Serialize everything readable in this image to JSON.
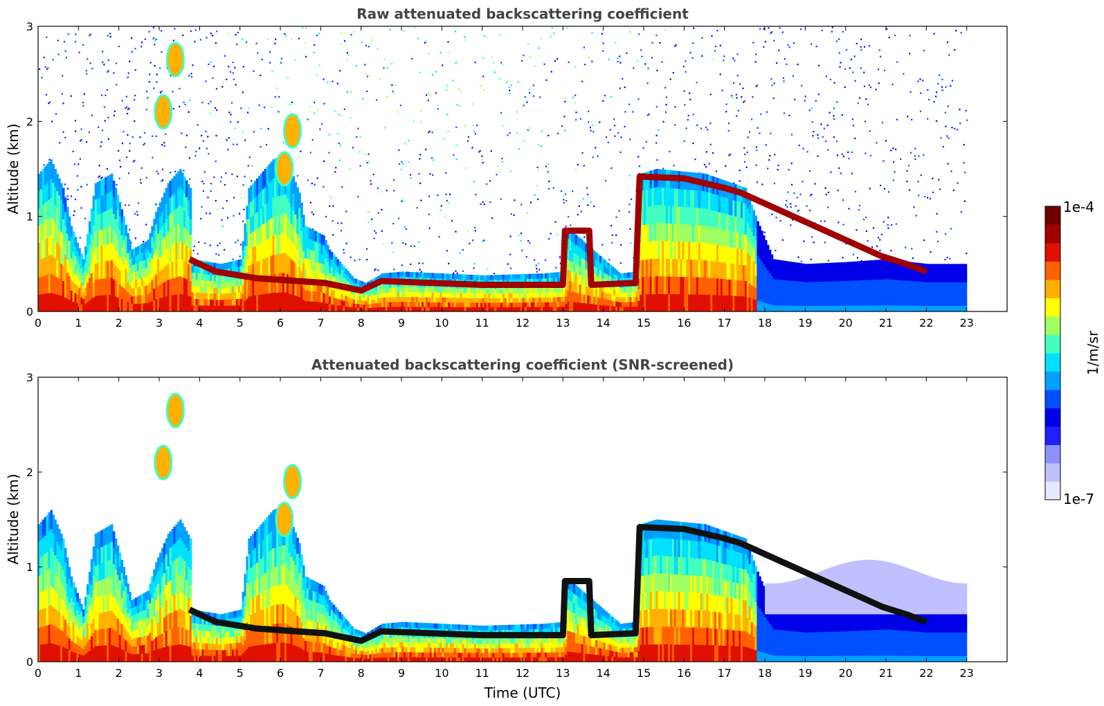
{
  "chart_data": [
    {
      "type": "heatmap",
      "title": "Raw attenuated backscattering coefficient",
      "xlabel": "",
      "ylabel": "Altitude (km)",
      "xlim": [
        0,
        24
      ],
      "ylim": [
        0,
        3
      ],
      "x_ticks": [
        0,
        1,
        2,
        3,
        4,
        5,
        6,
        7,
        8,
        9,
        10,
        11,
        12,
        13,
        14,
        15,
        16,
        17,
        18,
        19,
        20,
        21,
        22,
        23
      ],
      "y_ticks": [
        0,
        1,
        2,
        3
      ],
      "data_extent_x": [
        0,
        23
      ],
      "grid": false,
      "layers": {
        "surface_aerosol": [
          [
            0,
            1.45
          ],
          [
            0.3,
            1.6
          ],
          [
            0.6,
            1.3
          ],
          [
            0.8,
            0.9
          ],
          [
            1.1,
            0.55
          ],
          [
            1.4,
            1.35
          ],
          [
            1.8,
            1.45
          ],
          [
            2.1,
            1.0
          ],
          [
            2.3,
            0.65
          ],
          [
            2.7,
            0.75
          ],
          [
            2.9,
            1.05
          ],
          [
            3.2,
            1.35
          ],
          [
            3.5,
            1.5
          ],
          [
            3.75,
            1.3
          ],
          [
            3.8,
            0.55
          ],
          [
            4.5,
            0.5
          ],
          [
            5.0,
            0.55
          ],
          [
            5.2,
            1.3
          ],
          [
            5.8,
            1.6
          ],
          [
            6.1,
            1.65
          ],
          [
            6.45,
            1.25
          ],
          [
            6.6,
            0.9
          ],
          [
            7.05,
            0.8
          ],
          [
            7.2,
            0.65
          ],
          [
            7.8,
            0.35
          ],
          [
            8.1,
            0.3
          ],
          [
            8.5,
            0.4
          ],
          [
            9.0,
            0.42
          ],
          [
            11.0,
            0.38
          ],
          [
            12.5,
            0.4
          ],
          [
            13.0,
            0.42
          ],
          [
            13.1,
            0.88
          ],
          [
            14.4,
            0.4
          ],
          [
            14.8,
            0.42
          ],
          [
            14.9,
            1.45
          ],
          [
            15.3,
            1.5
          ],
          [
            16.5,
            1.45
          ],
          [
            17.5,
            1.3
          ],
          [
            17.8,
            0.95
          ],
          [
            18.2,
            0.55
          ],
          [
            19.0,
            0.5
          ],
          [
            20.0,
            0.52
          ],
          [
            21.0,
            0.55
          ],
          [
            22.0,
            0.5
          ],
          [
            23.0,
            0.5
          ]
        ],
        "cloud_layer": [
          [
            3.75,
            0.55
          ],
          [
            4.4,
            0.42
          ],
          [
            5.4,
            0.35
          ],
          [
            7.1,
            0.3
          ],
          [
            8.0,
            0.22
          ],
          [
            8.5,
            0.32
          ],
          [
            11.0,
            0.28
          ],
          [
            13.0,
            0.28
          ],
          [
            13.05,
            0.85
          ],
          [
            13.65,
            0.85
          ],
          [
            13.7,
            0.28
          ],
          [
            14.8,
            0.3
          ],
          [
            14.9,
            1.42
          ],
          [
            16.0,
            1.4
          ],
          [
            17.0,
            1.3
          ],
          [
            17.4,
            1.25
          ],
          [
            20.9,
            0.58
          ],
          [
            21.5,
            0.5
          ],
          [
            22.0,
            0.42
          ]
        ],
        "elevated_cloud": [
          [
            3.4,
            2.65
          ],
          [
            3.1,
            2.1
          ],
          [
            6.3,
            1.9
          ],
          [
            6.1,
            1.5
          ]
        ]
      }
    },
    {
      "type": "heatmap",
      "title": "Attenuated backscattering coefficient (SNR-screened)",
      "xlabel": "Time (UTC)",
      "ylabel": "Altitude (km)",
      "xlim": [
        0,
        24
      ],
      "ylim": [
        0,
        3
      ],
      "x_ticks": [
        0,
        1,
        2,
        3,
        4,
        5,
        6,
        7,
        8,
        9,
        10,
        11,
        12,
        13,
        14,
        15,
        16,
        17,
        18,
        19,
        20,
        21,
        22,
        23
      ],
      "y_ticks": [
        0,
        1,
        2,
        3
      ],
      "data_extent_x": [
        0,
        23
      ],
      "grid": false
    }
  ],
  "colorbar": {
    "label": "1/m/sr",
    "min_label": "1e-7",
    "max_label": "1e-4",
    "colormap": [
      "#e8e8ff",
      "#c0c0ff",
      "#9090ff",
      "#2020ff",
      "#0000e8",
      "#0050ff",
      "#00a0ff",
      "#00e0ff",
      "#40ffc0",
      "#a0ff60",
      "#ffff00",
      "#ffb000",
      "#ff6000",
      "#e01000",
      "#a00000",
      "#700000"
    ]
  }
}
